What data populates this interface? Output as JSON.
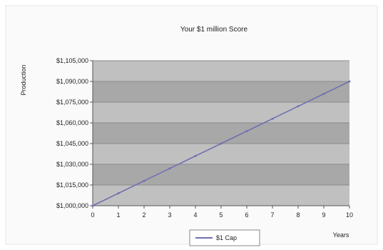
{
  "chart_data": {
    "type": "line",
    "title": "Your $1 million Score",
    "xlabel": "Years",
    "ylabel": "Production",
    "x": [
      0,
      1,
      2,
      3,
      4,
      5,
      6,
      7,
      8,
      9,
      10
    ],
    "series": [
      {
        "name": "$1 Cap",
        "values": [
          1000000,
          1009000,
          1018000,
          1027000,
          1036000,
          1045000,
          1054000,
          1063000,
          1072000,
          1081000,
          1090000
        ]
      }
    ],
    "ylim": [
      1000000,
      1105000
    ],
    "yticks": [
      1000000,
      1015000,
      1030000,
      1045000,
      1060000,
      1075000,
      1090000,
      1105000
    ],
    "ytick_labels": [
      "$1,000,000",
      "$1,015,000",
      "$1,030,000",
      "$1,045,000",
      "$1,060,000",
      "$1,075,000",
      "$1,090,000",
      "$1,105,000"
    ],
    "xticks": [
      0,
      1,
      2,
      3,
      4,
      5,
      6,
      7,
      8,
      9,
      10
    ],
    "grid": true,
    "legend_position": "bottom-center",
    "colors": {
      "plot_background": "#c0c0c0",
      "band_dark": "#a8a8a8",
      "line": "#7070b0",
      "chart_background": "#ffffff"
    }
  }
}
